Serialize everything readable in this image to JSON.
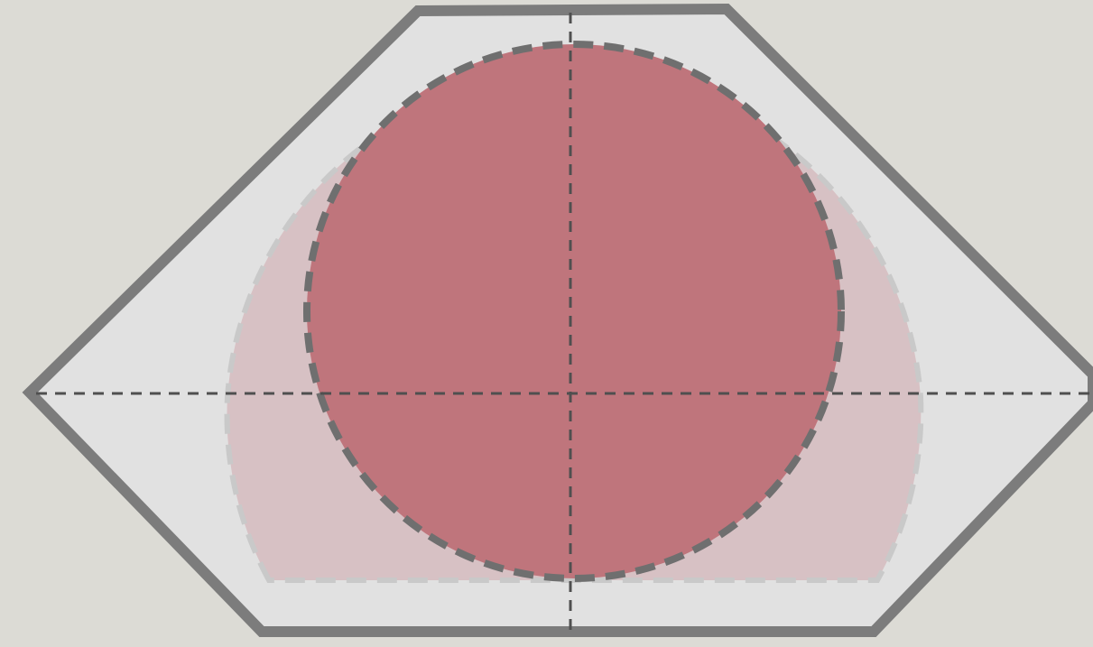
{
  "colors": {
    "background": "#dcdbd5",
    "outer_shape_fill": "#e1e1e1",
    "outer_shape_stroke": "#7c7c7c",
    "secondary_shape_fill": "#d7c1c4",
    "secondary_shape_stroke": "#c9c9c9",
    "circle_fill": "#bf757c",
    "circle_stroke": "#6f6f6f",
    "axis_line": "#4f4f4f"
  }
}
